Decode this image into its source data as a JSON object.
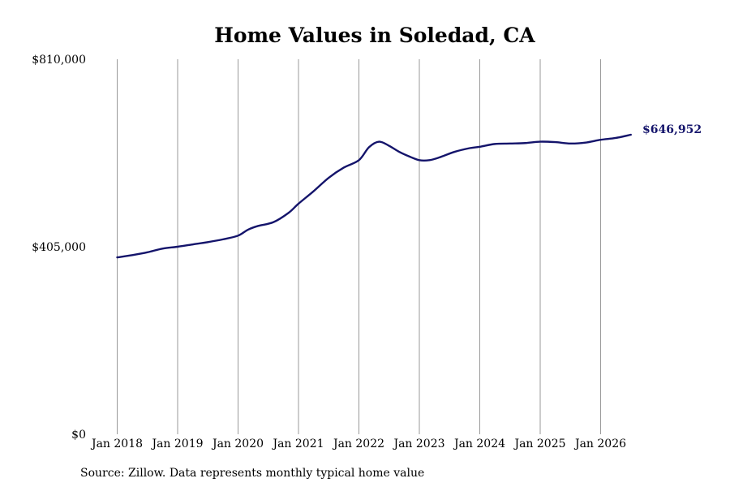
{
  "colors": {
    "line": "#14146b",
    "grid": "#9a9a9a",
    "text": "#000000"
  },
  "chart_data": {
    "type": "line",
    "title": "Home Values in Soledad, CA",
    "source": "Source: Zillow. Data represents monthly typical home value",
    "xlabel": "",
    "ylabel": "",
    "grid": "vertical",
    "legend": "none",
    "ylim": [
      0,
      810000
    ],
    "yticks": [
      0,
      405000,
      810000
    ],
    "ytick_labels": [
      "$0",
      "$405,000",
      "$810,000"
    ],
    "xlim": [
      "2018-01",
      "2026-07"
    ],
    "xticks": [
      "2018-01",
      "2019-01",
      "2020-01",
      "2021-01",
      "2022-01",
      "2023-01",
      "2024-01",
      "2025-01",
      "2026-01"
    ],
    "xtick_labels": [
      "Jan 2018",
      "Jan 2019",
      "Jan 2020",
      "Jan 2021",
      "Jan 2022",
      "Jan 2023",
      "Jan 2024",
      "Jan 2025",
      "Jan 2026"
    ],
    "end_label": "$646,952",
    "series": [
      {
        "x": [
          "2018-01",
          "2018-04",
          "2018-07",
          "2018-10",
          "2019-01",
          "2019-04",
          "2019-07",
          "2019-10",
          "2020-01",
          "2020-03",
          "2020-05",
          "2020-08",
          "2020-11",
          "2021-01",
          "2021-04",
          "2021-07",
          "2021-10",
          "2022-01",
          "2022-03",
          "2022-05",
          "2022-07",
          "2022-09",
          "2022-11",
          "2023-01",
          "2023-03",
          "2023-05",
          "2023-08",
          "2023-11",
          "2024-01",
          "2024-04",
          "2024-07",
          "2024-10",
          "2025-01",
          "2025-04",
          "2025-07",
          "2025-10",
          "2026-01",
          "2026-04",
          "2026-07"
        ],
        "y": [
          382000,
          387000,
          393000,
          401000,
          405000,
          410000,
          415000,
          421000,
          429000,
          442000,
          450000,
          458000,
          478000,
          498000,
          525000,
          554000,
          576000,
          592000,
          620000,
          632000,
          623000,
          610000,
          600000,
          592000,
          592000,
          598000,
          610000,
          618000,
          621000,
          627000,
          628000,
          629000,
          632000,
          631000,
          628000,
          630000,
          636000,
          640000,
          646952
        ]
      }
    ]
  }
}
